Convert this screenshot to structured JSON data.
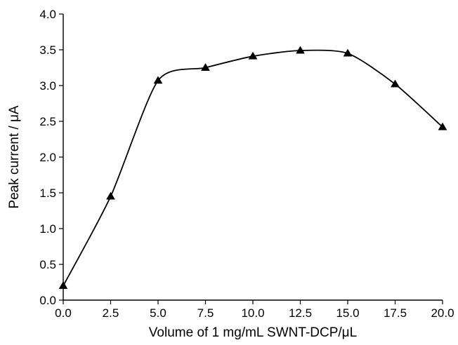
{
  "chart_data": {
    "type": "line",
    "title": "",
    "xlabel": "Volume of 1 mg/mL SWNT-DCP/μL",
    "ylabel": "Peak current / μA",
    "xlim": [
      0,
      20
    ],
    "ylim": [
      0,
      4
    ],
    "x_ticks": [
      "0.0",
      "2.5",
      "5.0",
      "7.5",
      "10.0",
      "12.5",
      "15.0",
      "17.5",
      "20.0"
    ],
    "y_ticks": [
      "0.0",
      "0.5",
      "1.0",
      "1.5",
      "2.0",
      "2.5",
      "3.0",
      "3.5",
      "4.0"
    ],
    "grid": false,
    "marker": "triangle",
    "series": [
      {
        "x": [
          0,
          2.5,
          5.0,
          7.5,
          10.0,
          12.5,
          15.0,
          17.5,
          20.0
        ],
        "values": [
          0.2,
          1.45,
          3.07,
          3.25,
          3.41,
          3.49,
          3.45,
          3.02,
          2.42
        ]
      }
    ]
  }
}
